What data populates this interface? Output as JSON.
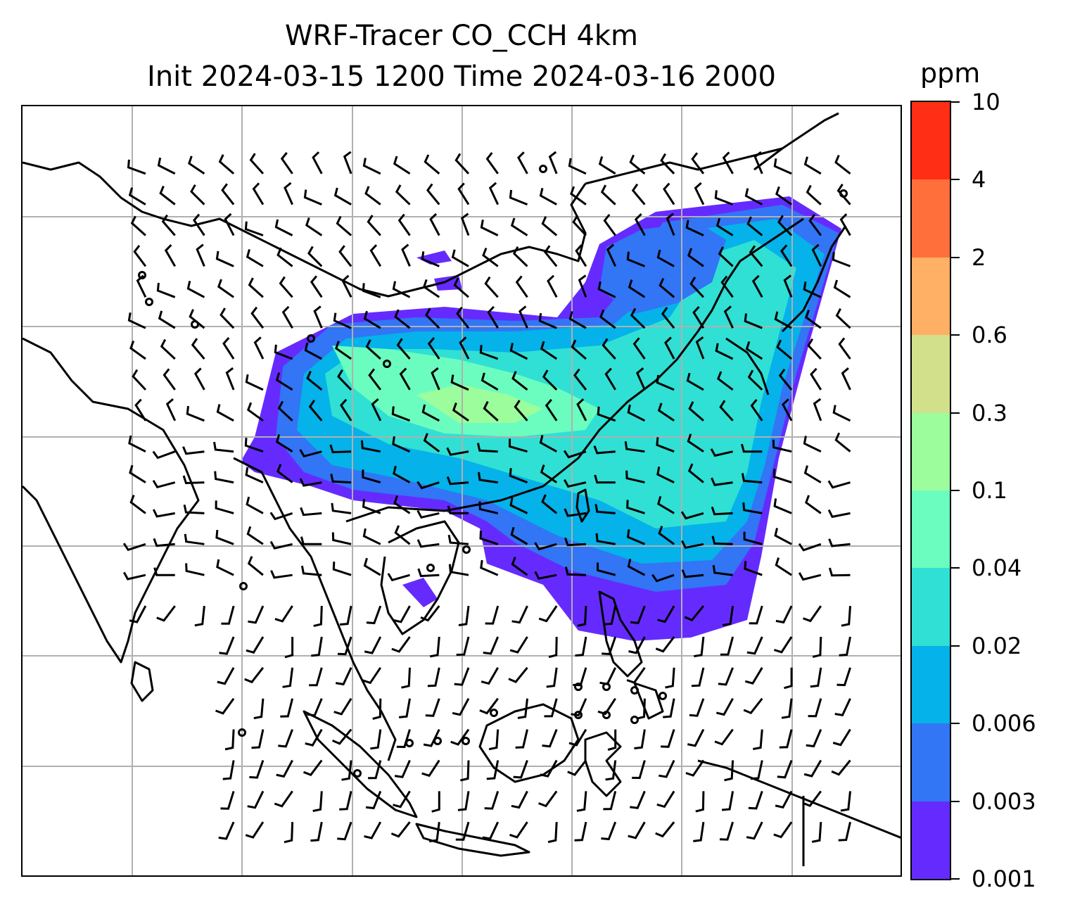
{
  "title": {
    "line1": "WRF-Tracer CO_CCH 4km",
    "line2": "Init 2024-03-15 1200 Time 2024-03-16 2000"
  },
  "colorbar": {
    "unit": "ppm",
    "levels": [
      "0.001",
      "0.003",
      "0.006",
      "0.02",
      "0.04",
      "0.1",
      "0.3",
      "0.6",
      "2",
      "4",
      "10"
    ],
    "colors": [
      "#652bfe",
      "#3275f5",
      "#05b2e9",
      "#30e0d4",
      "#6bfdbf",
      "#9cfd9c",
      "#d2e08b",
      "#ffb064",
      "#ff6f3b",
      "#ff2e15"
    ]
  },
  "map": {
    "field_colors": {
      "low": "#652bfe",
      "mid1": "#3275f5",
      "mid2": "#05b2e9",
      "mid3": "#30e0d4",
      "high1": "#6bfdbf",
      "high2": "#9cfd9c"
    },
    "gridline_color": "#b0b0b0",
    "coastline_color": "#000000"
  }
}
